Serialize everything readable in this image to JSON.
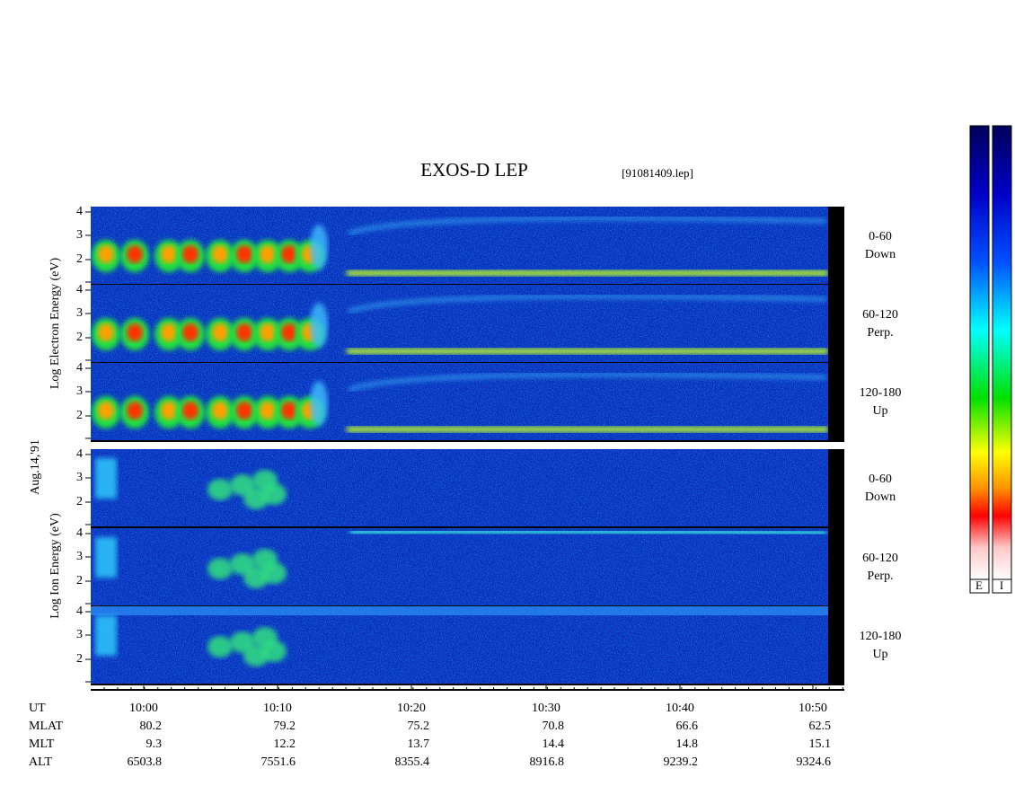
{
  "header": {
    "title": "EXOS-D LEP",
    "file": "[91081409.lep]"
  },
  "date": "Aug.14,'91",
  "electron": {
    "axis_label": "Log Electron Energy (eV)",
    "yticks": [
      "4",
      "3",
      "2"
    ],
    "panels": [
      {
        "range": "0-60",
        "direction": "Down"
      },
      {
        "range": "60-120",
        "direction": "Perp."
      },
      {
        "range": "120-180",
        "direction": "Up"
      }
    ]
  },
  "ion": {
    "axis_label": "Log Ion Energy (eV)",
    "yticks": [
      "4",
      "3",
      "2"
    ],
    "panels": [
      {
        "range": "0-60",
        "direction": "Down"
      },
      {
        "range": "60-120",
        "direction": "Perp."
      },
      {
        "range": "120-180",
        "direction": "Up"
      }
    ]
  },
  "time_axis": {
    "label": "UT",
    "ticks": [
      "10:00",
      "10:10",
      "10:20",
      "10:30",
      "10:40",
      "10:50"
    ]
  },
  "ephemeris": [
    {
      "label": "MLAT",
      "values": [
        "80.2",
        "79.2",
        "75.2",
        "70.8",
        "66.6",
        "62.5"
      ]
    },
    {
      "label": "MLT",
      "values": [
        "9.3",
        "12.2",
        "13.7",
        "14.4",
        "14.8",
        "15.1"
      ]
    },
    {
      "label": "ALT",
      "values": [
        "6503.8",
        "7551.6",
        "8355.4",
        "8916.8",
        "9239.2",
        "9324.6"
      ]
    }
  ],
  "colorbars": [
    "E",
    "I"
  ]
}
